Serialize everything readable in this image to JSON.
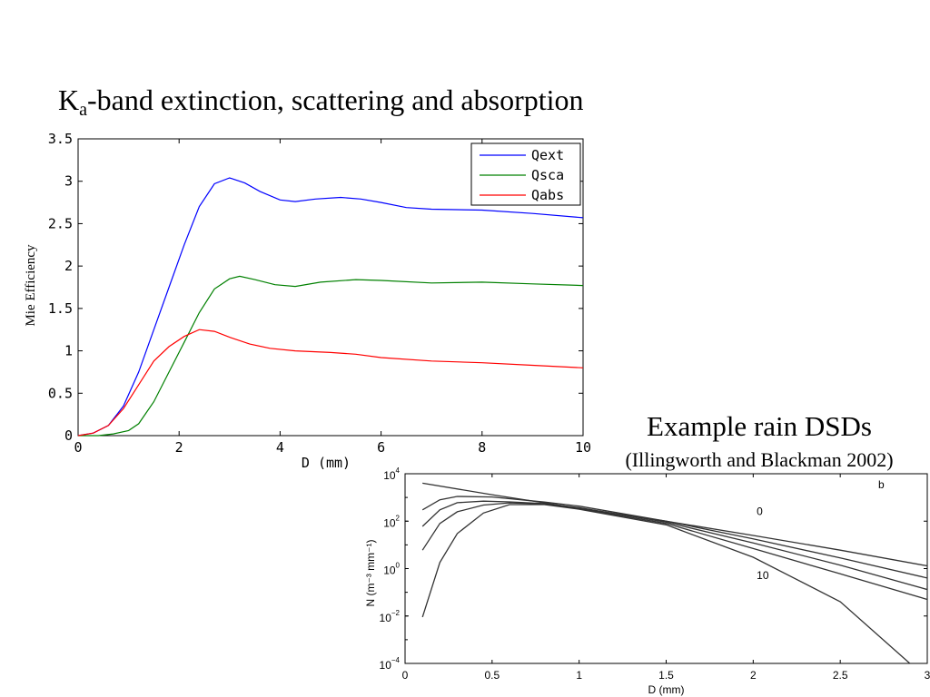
{
  "slide": {
    "title_main": "K",
    "title_sub": "a",
    "title_rest": "-band extinction, scattering and absorption",
    "right_title": "Example rain DSDs",
    "right_subtitle": "(Illingworth and Blackman 2002)"
  },
  "chart_data": [
    {
      "type": "line",
      "xlabel": "D (mm)",
      "ylabel": "Mie Efficiency",
      "xlim": [
        0,
        10
      ],
      "ylim": [
        0,
        3.5
      ],
      "xticks": [
        0,
        2,
        4,
        6,
        8,
        10
      ],
      "yticks": [
        0,
        0.5,
        1,
        1.5,
        2,
        2.5,
        3,
        3.5
      ],
      "xtick_labels": [
        "0",
        "2",
        "4",
        "6",
        "8",
        "10"
      ],
      "ytick_labels": [
        "0",
        "0.5",
        "1",
        "1.5",
        "2",
        "2.5",
        "3",
        "3.5"
      ],
      "legend": "top-right",
      "grid": false,
      "series": [
        {
          "name": "Qext",
          "color": "#0000ff",
          "points": [
            [
              0,
              0
            ],
            [
              0.3,
              0.03
            ],
            [
              0.6,
              0.12
            ],
            [
              0.9,
              0.35
            ],
            [
              1.2,
              0.75
            ],
            [
              1.5,
              1.25
            ],
            [
              1.8,
              1.75
            ],
            [
              2.1,
              2.25
            ],
            [
              2.4,
              2.7
            ],
            [
              2.7,
              2.97
            ],
            [
              3.0,
              3.04
            ],
            [
              3.3,
              2.98
            ],
            [
              3.6,
              2.88
            ],
            [
              4.0,
              2.78
            ],
            [
              4.3,
              2.76
            ],
            [
              4.7,
              2.79
            ],
            [
              5.2,
              2.81
            ],
            [
              5.6,
              2.79
            ],
            [
              6.0,
              2.75
            ],
            [
              6.5,
              2.69
            ],
            [
              7.0,
              2.67
            ],
            [
              8.0,
              2.66
            ],
            [
              9.0,
              2.62
            ],
            [
              10.0,
              2.57
            ]
          ]
        },
        {
          "name": "Qsca",
          "color": "#008000",
          "points": [
            [
              0,
              0
            ],
            [
              0.4,
              0.0
            ],
            [
              0.7,
              0.02
            ],
            [
              1.0,
              0.06
            ],
            [
              1.2,
              0.14
            ],
            [
              1.5,
              0.4
            ],
            [
              1.8,
              0.75
            ],
            [
              2.1,
              1.1
            ],
            [
              2.4,
              1.45
            ],
            [
              2.7,
              1.73
            ],
            [
              3.0,
              1.85
            ],
            [
              3.2,
              1.88
            ],
            [
              3.5,
              1.84
            ],
            [
              3.9,
              1.78
            ],
            [
              4.3,
              1.76
            ],
            [
              4.8,
              1.81
            ],
            [
              5.5,
              1.84
            ],
            [
              6.0,
              1.83
            ],
            [
              7.0,
              1.8
            ],
            [
              8.0,
              1.81
            ],
            [
              9.0,
              1.79
            ],
            [
              10.0,
              1.77
            ]
          ]
        },
        {
          "name": "Qabs",
          "color": "#ff0000",
          "points": [
            [
              0,
              0
            ],
            [
              0.3,
              0.03
            ],
            [
              0.6,
              0.12
            ],
            [
              0.9,
              0.32
            ],
            [
              1.2,
              0.6
            ],
            [
              1.5,
              0.88
            ],
            [
              1.8,
              1.05
            ],
            [
              2.1,
              1.17
            ],
            [
              2.4,
              1.25
            ],
            [
              2.7,
              1.23
            ],
            [
              3.0,
              1.16
            ],
            [
              3.4,
              1.08
            ],
            [
              3.8,
              1.03
            ],
            [
              4.3,
              1.0
            ],
            [
              5.0,
              0.98
            ],
            [
              5.5,
              0.96
            ],
            [
              6.0,
              0.92
            ],
            [
              7.0,
              0.88
            ],
            [
              8.0,
              0.86
            ],
            [
              9.0,
              0.83
            ],
            [
              10.0,
              0.8
            ]
          ]
        }
      ]
    },
    {
      "type": "line",
      "xlabel": "D (mm)",
      "ylabel": "N  (m⁻³ mm⁻¹)",
      "x_scale": "linear",
      "y_scale": "log",
      "xlim": [
        0,
        3
      ],
      "ylim": [
        0.0001,
        10000
      ],
      "xticks": [
        0,
        0.5,
        1,
        1.5,
        2,
        2.5,
        3
      ],
      "xtick_labels": [
        "0",
        "0.5",
        "1",
        "1.5",
        "2",
        "2.5",
        "3"
      ],
      "yticks": [
        0.0001,
        0.01,
        1,
        100,
        10000
      ],
      "ytick_labels": [
        {
          "base": "10",
          "exp": "−4"
        },
        {
          "base": "10",
          "exp": "−2"
        },
        {
          "base": "10",
          "exp": "0"
        },
        {
          "base": "10",
          "exp": "2"
        },
        {
          "base": "10",
          "exp": "4"
        }
      ],
      "panel_label": "b",
      "grid": false,
      "annotations": [
        {
          "text": "0",
          "x": 2.02,
          "y": 180
        },
        {
          "text": "10",
          "x": 2.02,
          "y": 0.37
        }
      ],
      "series": [
        {
          "label": "0",
          "color": "#333333",
          "points": [
            [
              0.1,
              4000
            ],
            [
              0.5,
              1300
            ],
            [
              1.0,
              350
            ],
            [
              1.5,
              100
            ],
            [
              2.0,
              25
            ],
            [
              2.5,
              6
            ],
            [
              3.0,
              1.3
            ]
          ]
        },
        {
          "color": "#333333",
          "points": [
            [
              0.1,
              300
            ],
            [
              0.2,
              800
            ],
            [
              0.3,
              1100
            ],
            [
              0.5,
              1050
            ],
            [
              0.8,
              640
            ],
            [
              1.0,
              430
            ],
            [
              1.5,
              100
            ],
            [
              2.0,
              18
            ],
            [
              2.5,
              2.8
            ],
            [
              3.0,
              0.4
            ]
          ]
        },
        {
          "color": "#333333",
          "points": [
            [
              0.1,
              60
            ],
            [
              0.2,
              300
            ],
            [
              0.3,
              600
            ],
            [
              0.45,
              700
            ],
            [
              0.6,
              650
            ],
            [
              0.8,
              550
            ],
            [
              1.0,
              370
            ],
            [
              1.5,
              90
            ],
            [
              2.0,
              12
            ],
            [
              2.5,
              1.4
            ],
            [
              3.0,
              0.13
            ]
          ]
        },
        {
          "color": "#333333",
          "points": [
            [
              0.1,
              6
            ],
            [
              0.2,
              80
            ],
            [
              0.3,
              250
            ],
            [
              0.45,
              480
            ],
            [
              0.6,
              590
            ],
            [
              0.8,
              530
            ],
            [
              1.0,
              340
            ],
            [
              1.5,
              80
            ],
            [
              2.0,
              7
            ],
            [
              2.5,
              0.6
            ],
            [
              3.0,
              0.05
            ]
          ]
        },
        {
          "label": "10",
          "color": "#333333",
          "points": [
            [
              0.1,
              0.009
            ],
            [
              0.2,
              1.8
            ],
            [
              0.3,
              30
            ],
            [
              0.45,
              220
            ],
            [
              0.6,
              500
            ],
            [
              0.8,
              500
            ],
            [
              1.0,
              320
            ],
            [
              1.5,
              70
            ],
            [
              2.0,
              3
            ],
            [
              2.5,
              0.04
            ],
            [
              2.9,
              0.0001
            ]
          ]
        }
      ]
    }
  ]
}
